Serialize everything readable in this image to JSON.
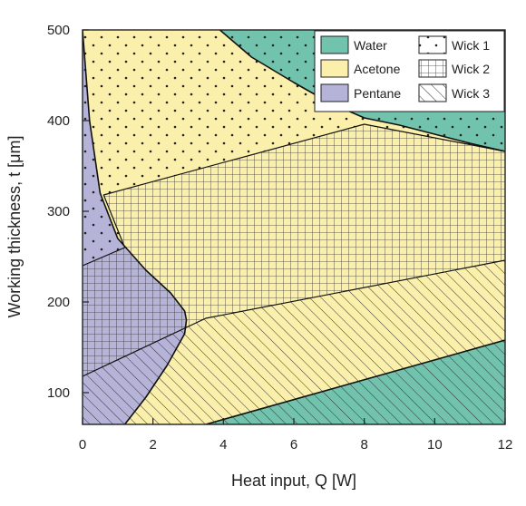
{
  "chart_data": {
    "type": "area",
    "xlabel": "Heat input, Q [W]",
    "ylabel": "Working thickness, t [μm]",
    "xlim": [
      0,
      12
    ],
    "ylim": [
      65,
      500
    ],
    "xticks": [
      0,
      2,
      4,
      6,
      8,
      10,
      12
    ],
    "yticks": [
      100,
      200,
      300,
      400,
      500
    ],
    "grid": false,
    "legend_position": "top-right",
    "fluids": [
      {
        "name": "Water",
        "color": "#72c3ad"
      },
      {
        "name": "Acetone",
        "color": "#fbf0ab"
      },
      {
        "name": "Pentane",
        "color": "#b6b3d8"
      }
    ],
    "wicks": [
      {
        "name": "Wick 1",
        "pattern": "dots"
      },
      {
        "name": "Wick 2",
        "pattern": "grid"
      },
      {
        "name": "Wick 3",
        "pattern": "diagonal-hatch"
      }
    ],
    "boundaries": {
      "pentane_acetone": [
        [
          0,
          500
        ],
        [
          0.2,
          400
        ],
        [
          0.5,
          320
        ],
        [
          1,
          270
        ],
        [
          1.8,
          235
        ],
        [
          2.5,
          210
        ],
        [
          2.9,
          190
        ],
        [
          2.95,
          180
        ],
        [
          2.9,
          165
        ],
        [
          2.4,
          130
        ],
        [
          1.8,
          95
        ],
        [
          1.4,
          75
        ],
        [
          1.2,
          65
        ]
      ],
      "acetone_water_upper": [
        [
          3.9,
          500
        ],
        [
          4.8,
          470
        ],
        [
          6,
          442
        ],
        [
          7,
          420
        ],
        [
          8,
          403
        ],
        [
          9,
          395
        ],
        [
          10,
          385
        ],
        [
          11,
          375
        ],
        [
          12,
          366
        ]
      ],
      "acetone_water_lower": [
        [
          3.5,
          65
        ],
        [
          12,
          158
        ]
      ],
      "wick1_wick2": [
        [
          0,
          240
        ],
        [
          1.2,
          260
        ],
        [
          0.6,
          318
        ],
        [
          8,
          396
        ],
        [
          12,
          366
        ]
      ],
      "wick2_wick3": [
        [
          0,
          118
        ],
        [
          3.5,
          182
        ],
        [
          12,
          246
        ]
      ]
    },
    "regions": [
      {
        "fluid": "Water",
        "wick": "Wick 2"
      },
      {
        "fluid": "Water",
        "wick": "Wick 3"
      },
      {
        "fluid": "Acetone",
        "wick": "Wick 1"
      },
      {
        "fluid": "Acetone",
        "wick": "Wick 2"
      },
      {
        "fluid": "Acetone",
        "wick": "Wick 3"
      },
      {
        "fluid": "Pentane",
        "wick": "Wick 1"
      },
      {
        "fluid": "Pentane",
        "wick": "Wick 2"
      },
      {
        "fluid": "Pentane",
        "wick": "Wick 3"
      }
    ]
  }
}
